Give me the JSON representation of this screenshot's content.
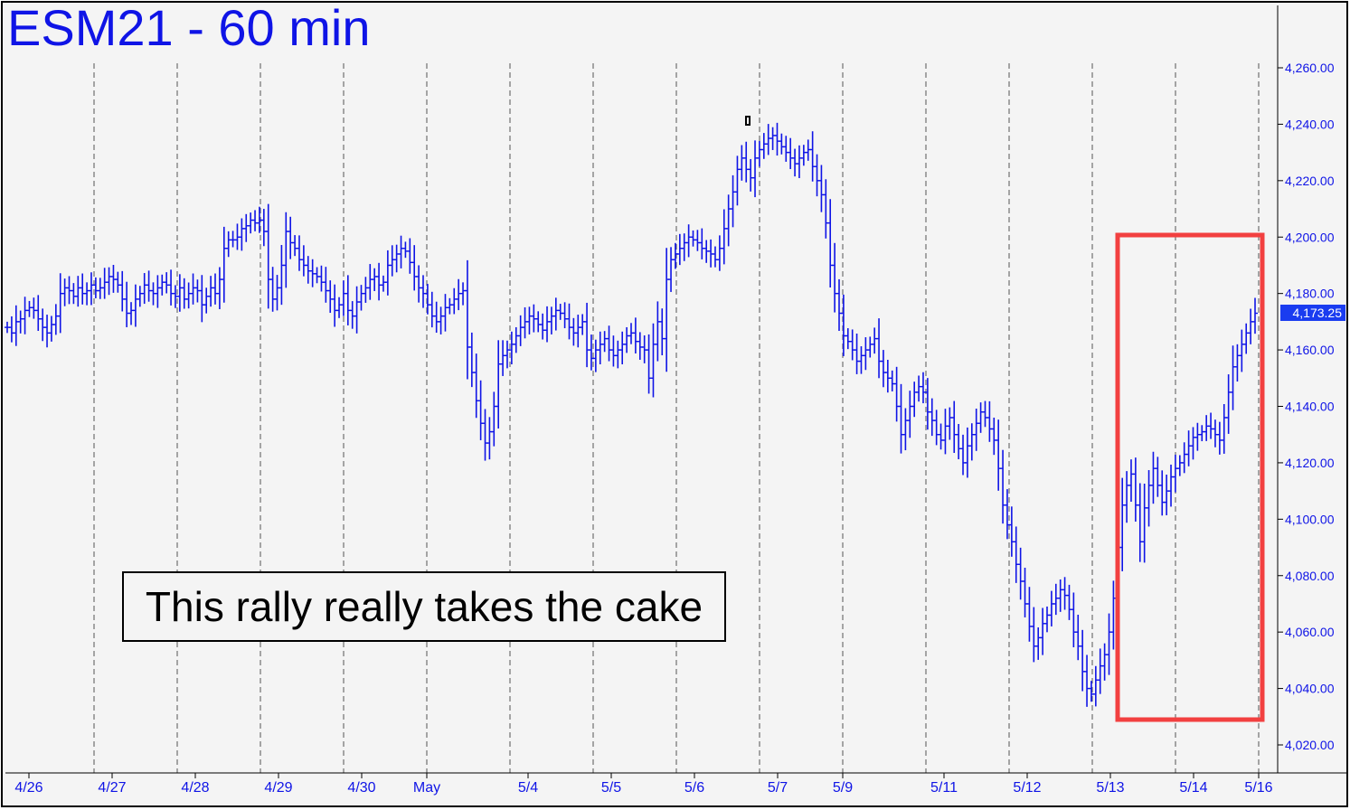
{
  "chart_data": {
    "type": "bar",
    "title": "ESM21 - 60 min",
    "annotation": "This rally really takes the cake",
    "last_price_label": "4,173.25",
    "last_price": 4173.25,
    "ylim": [
      4012,
      4268
    ],
    "y_ticks": [
      4020,
      4040,
      4060,
      4080,
      4100,
      4120,
      4140,
      4160,
      4180,
      4200,
      4220,
      4240,
      4260
    ],
    "y_tick_labels": [
      "4,020.00",
      "4,040.00",
      "4,060.00",
      "4,080.00",
      "4,100.00",
      "4,120.00",
      "4,140.00",
      "4,160.00",
      "4,180.00",
      "4,200.00",
      "4,220.00",
      "4,240.00",
      "4,260.00"
    ],
    "x_labels": [
      "4/26",
      "4/27",
      "4/28",
      "4/29",
      "4/30",
      "May",
      "5/4",
      "5/5",
      "5/6",
      "5/7",
      "5/9",
      "5/11",
      "5/12",
      "5/13",
      "5/14",
      "5/16"
    ],
    "series": [
      {
        "values": [
          4168,
          4166,
          4170,
          4171,
          4174,
          4175,
          4174,
          4171,
          4168,
          4166,
          4169,
          4172,
          4180,
          4182,
          4181,
          4179,
          4182,
          4180,
          4181,
          4183,
          4181,
          4182,
          4184,
          4186,
          4185,
          4183,
          4178,
          4173,
          4174,
          4178,
          4180,
          4183,
          4181,
          4180,
          4182,
          4184,
          4183,
          4180,
          4179,
          4182,
          4178,
          4180,
          4182,
          4181,
          4176,
          4179,
          4182,
          4180,
          4185,
          4196,
          4199,
          4199,
          4200,
          4203,
          4204,
          4206,
          4205,
          4206,
          4202,
          4185,
          4178,
          4182,
          4190,
          4202,
          4198,
          4196,
          4192,
          4190,
          4188,
          4187,
          4186,
          4184,
          4181,
          4178,
          4174,
          4176,
          4180,
          4174,
          4172,
          4177,
          4180,
          4182,
          4185,
          4186,
          4183,
          4184,
          4190,
          4192,
          4194,
          4196,
          4195,
          4191,
          4186,
          4182,
          4180,
          4176,
          4172,
          4170,
          4172,
          4175,
          4176,
          4178,
          4180,
          4181,
          4161,
          4152,
          4142,
          4134,
          4127,
          4131,
          4140,
          4155,
          4158,
          4160,
          4162,
          4165,
          4168,
          4170,
          4172,
          4171,
          4169,
          4167,
          4170,
          4172,
          4174,
          4173,
          4171,
          4168,
          4166,
          4168,
          4170,
          4160,
          4157,
          4160,
          4162,
          4164,
          4160,
          4158,
          4160,
          4162,
          4165,
          4166,
          4163,
          4161,
          4160,
          4150,
          4162,
          4170,
          4164,
          4185,
          4192,
          4194,
          4196,
          4198,
          4200,
          4199,
          4198,
          4196,
          4195,
          4194,
          4192,
          4196,
          4203,
          4210,
          4216,
          4224,
          4228,
          4224,
          4221,
          4228,
          4231,
          4233,
          4235,
          4236,
          4234,
          4232,
          4230,
          4228,
          4226,
          4228,
          4230,
          4231,
          4225,
          4220,
          4215,
          4205,
          4190,
          4180,
          4173,
          4165,
          4163,
          4160,
          4156,
          4158,
          4160,
          4162,
          4164,
          4156,
          4152,
          4150,
          4148,
          4140,
          4130,
          4135,
          4140,
          4145,
          4147,
          4145,
          4138,
          4135,
          4130,
          4128,
          4133,
          4136,
          4130,
          4125,
          4120,
          4126,
          4130,
          4134,
          4138,
          4136,
          4132,
          4128,
          4118,
          4105,
          4098,
          4092,
          4084,
          4078,
          4070,
          4062,
          4055,
          4058,
          4063,
          4066,
          4070,
          4072,
          4075,
          4073,
          4068,
          4060,
          4055,
          4046,
          4040,
          4038,
          4043,
          4048,
          4052,
          4060,
          4072,
          4090,
          4105,
          4112,
          4116,
          4105,
          4092,
          4104,
          4112,
          4118,
          4112,
          4106,
          4110,
          4115,
          4118,
          4120,
          4123,
          4126,
          4129,
          4130,
          4131,
          4133,
          4132,
          4130,
          4128,
          4136,
          4145,
          4154,
          4158,
          4162,
          4166,
          4170,
          4173
        ]
      }
    ],
    "grid": "vertical-dashed",
    "colors": {
      "bars": "#0f14e6",
      "highlight": "#f24040",
      "background": "#f4f4f4"
    }
  }
}
